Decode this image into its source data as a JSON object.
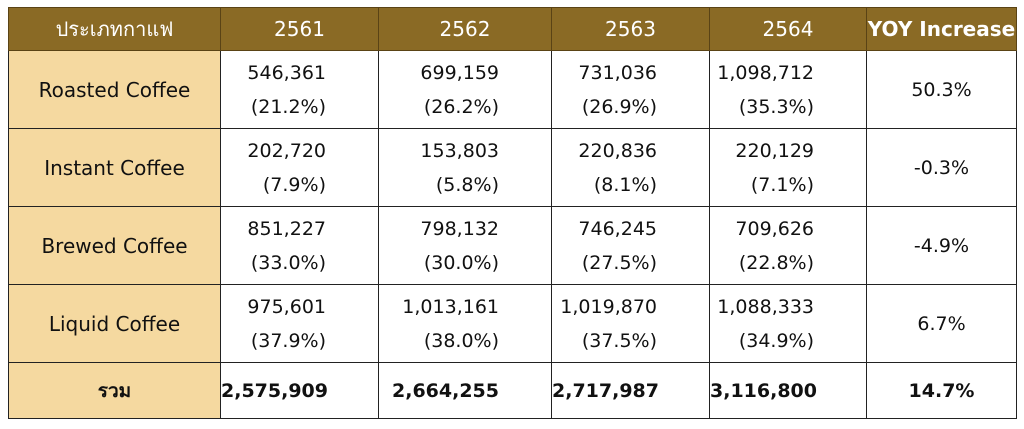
{
  "headers": {
    "type": "ประเภทกาแฟ",
    "y2561": "2561",
    "y2562": "2562",
    "y2563": "2563",
    "y2564": "2564",
    "yoy": "YOY Increase"
  },
  "rows": [
    {
      "name": "Roasted Coffee",
      "v2561": "546,361",
      "p2561": "(21.2%)",
      "v2562": "699,159",
      "p2562": "(26.2%)",
      "v2563": "731,036",
      "p2563": "(26.9%)",
      "v2564": "1,098,712",
      "p2564": "(35.3%)",
      "yoy": "50.3%"
    },
    {
      "name": "Instant Coffee",
      "v2561": "202,720",
      "p2561": "(7.9%)",
      "v2562": "153,803",
      "p2562": "(5.8%)",
      "v2563": "220,836",
      "p2563": "(8.1%)",
      "v2564": "220,129",
      "p2564": "(7.1%)",
      "yoy": "-0.3%"
    },
    {
      "name": "Brewed Coffee",
      "v2561": "851,227",
      "p2561": "(33.0%)",
      "v2562": "798,132",
      "p2562": "(30.0%)",
      "v2563": "746,245",
      "p2563": "(27.5%)",
      "v2564": "709,626",
      "p2564": "(22.8%)",
      "yoy": "-4.9%"
    },
    {
      "name": "Liquid Coffee",
      "v2561": "975,601",
      "p2561": "(37.9%)",
      "v2562": "1,013,161",
      "p2562": "(38.0%)",
      "v2563": "1,019,870",
      "p2563": "(37.5%)",
      "v2564": "1,088,333",
      "p2564": "(34.9%)",
      "yoy": "6.7%"
    }
  ],
  "total": {
    "name": "รวม",
    "v2561": "2,575,909",
    "v2562": "2,664,255",
    "v2563": "2,717,987",
    "v2564": "3,116,800",
    "yoy": "14.7%"
  },
  "colors": {
    "header_bg": "#8a6a25",
    "header_text": "#ffffff",
    "category_bg": "#f5d9a0"
  }
}
